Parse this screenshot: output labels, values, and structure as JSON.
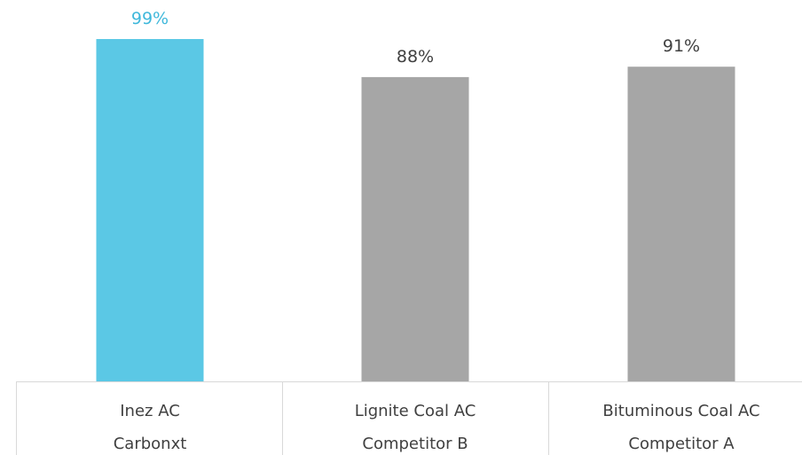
{
  "chart_data": {
    "type": "bar",
    "categories": [
      {
        "name": "Inez AC",
        "group": "Carbonxt"
      },
      {
        "name": "Lignite Coal AC",
        "group": "Competitor B"
      },
      {
        "name": "Bituminous Coal AC",
        "group": "Competitor A"
      }
    ],
    "values": [
      99,
      88,
      91
    ],
    "value_labels": [
      "99%",
      "88%",
      "91%"
    ],
    "unit": "%",
    "ylim": [
      0,
      100
    ],
    "grid": false,
    "legend": "none",
    "colors": [
      "#5BC8E5",
      "#A6A6A6",
      "#A6A6A6"
    ],
    "label_colors": [
      "#3FB8DB",
      "#404040",
      "#404040"
    ]
  }
}
